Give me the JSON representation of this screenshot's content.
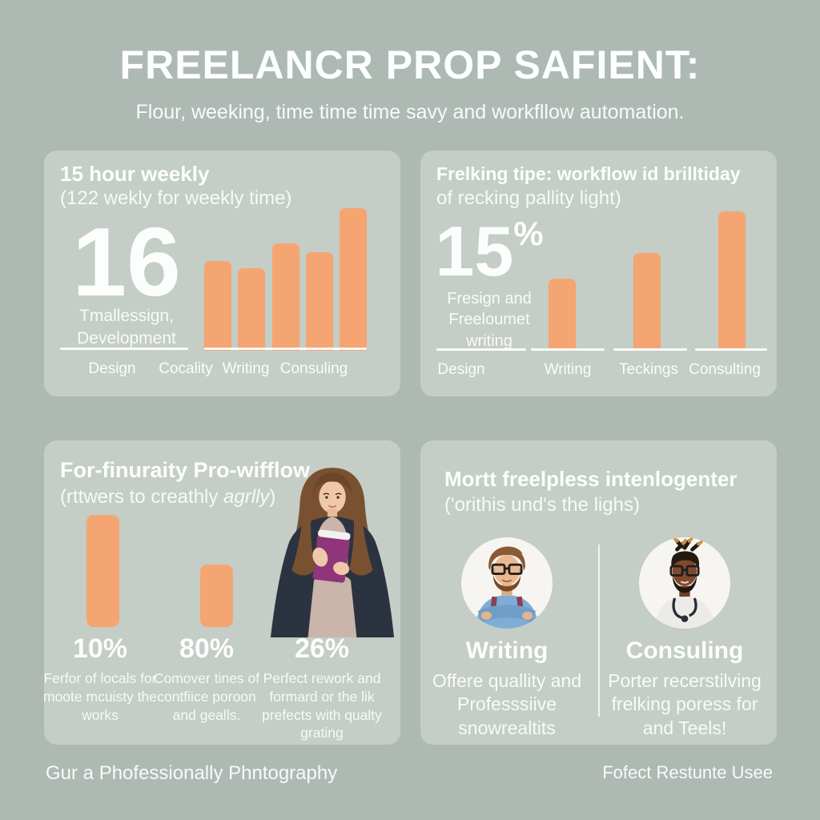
{
  "page": {
    "title": "FREELANCR PROP SAFIENT:",
    "subtitle": "Flour, weeking, time time time savy and workfllow automation.",
    "footer_left": "Gur a Phofessionally Phntography",
    "footer_right": "Fofect Restunte Usee"
  },
  "colors": {
    "background": "#aeb9b3",
    "card": "#c4cdc6",
    "bar_orange": "#f5a572",
    "text_white": "#ffffff",
    "book_purple": "#8e357c"
  },
  "cards": {
    "top_left": {
      "title": "15 hour weekly",
      "subtitle": "(122 wekly for weekly time)",
      "big_number": "16",
      "caption_line1": "Tmallessign,",
      "caption_line2": "Development"
    },
    "top_right": {
      "title": "Frelking tipe: workflow id brilltiday",
      "subtitle": "of recking pallity light)",
      "big_number": "15",
      "big_number_suffix": "%",
      "caption_line1": "Fresign and",
      "caption_line2": "Freeloumet",
      "caption_line3": "writing"
    },
    "bottom_left": {
      "title": "For-finuraity Pro-wifflow",
      "subtitle_prefix": "(rttwers to creathly ",
      "subtitle_italic": "agrlly",
      "subtitle_suffix": ")",
      "illustration": "woman-holding-purple-book",
      "stats": [
        {
          "value": "10%",
          "caption": "Ferfor of locals for moote mcuisty the works"
        },
        {
          "value": "80%",
          "caption": "Comover tines of contfiice poroon and gealls."
        },
        {
          "value": "26%",
          "caption": "Perfect rework and formard or the lik prefects with qualty grating"
        }
      ]
    },
    "bottom_right": {
      "title": "Mortt freelpless intenlogenter",
      "subtitle": "('orithis und's the lighs)",
      "profiles": [
        {
          "name": "Writing",
          "description": "Offere quallity and Professsiive snowrealtits",
          "avatar": "man-glasses-blue-shirt-crossed-arms"
        },
        {
          "name": "Consuling",
          "description": "Porter recerstilving frelking poress for and Teels!",
          "avatar": "man-dreadlocks-stethoscope"
        }
      ]
    }
  },
  "chart_data": [
    {
      "type": "bar",
      "title": "15 hour weekly (122 wekly for weekly time)",
      "categories": [
        "Design",
        "Cocality",
        "Writing",
        "Consuling"
      ],
      "values": [
        63,
        58,
        75,
        69,
        100
      ],
      "ylim": [
        0,
        100
      ],
      "ylabel": "",
      "xlabel": "",
      "grid": false,
      "bar_color": "#f5a572",
      "note": "No numeric axis shown; values are relative bar heights (max = 100). Image shows 5 bars but only 4 category labels."
    },
    {
      "type": "bar",
      "title": "Frelking tipe: workflow id brilltiday (of recking pallity light)",
      "categories": [
        "Design",
        "Writing",
        "Teckings",
        "Consulting"
      ],
      "values": [
        52,
        70,
        100
      ],
      "ylim": [
        0,
        100
      ],
      "ylabel": "",
      "xlabel": "",
      "grid": false,
      "bar_color": "#f5a572",
      "stat_label": "15%",
      "note": "First column ('Design') holds the 15% stat text instead of a bar; 3 bars drawn with relative heights (max = 100)."
    },
    {
      "type": "bar",
      "title": "For-finuraity Pro-wifflow (rttwers to creathly agrlly)",
      "categories": [
        "10%",
        "80%"
      ],
      "values": [
        100,
        56
      ],
      "ylim": [
        0,
        100
      ],
      "ylabel": "",
      "xlabel": "",
      "grid": false,
      "bar_color": "#f5a572",
      "note": "Two decorative rounded bars above the 10% and 80% stats; relative heights (max = 100)."
    }
  ]
}
